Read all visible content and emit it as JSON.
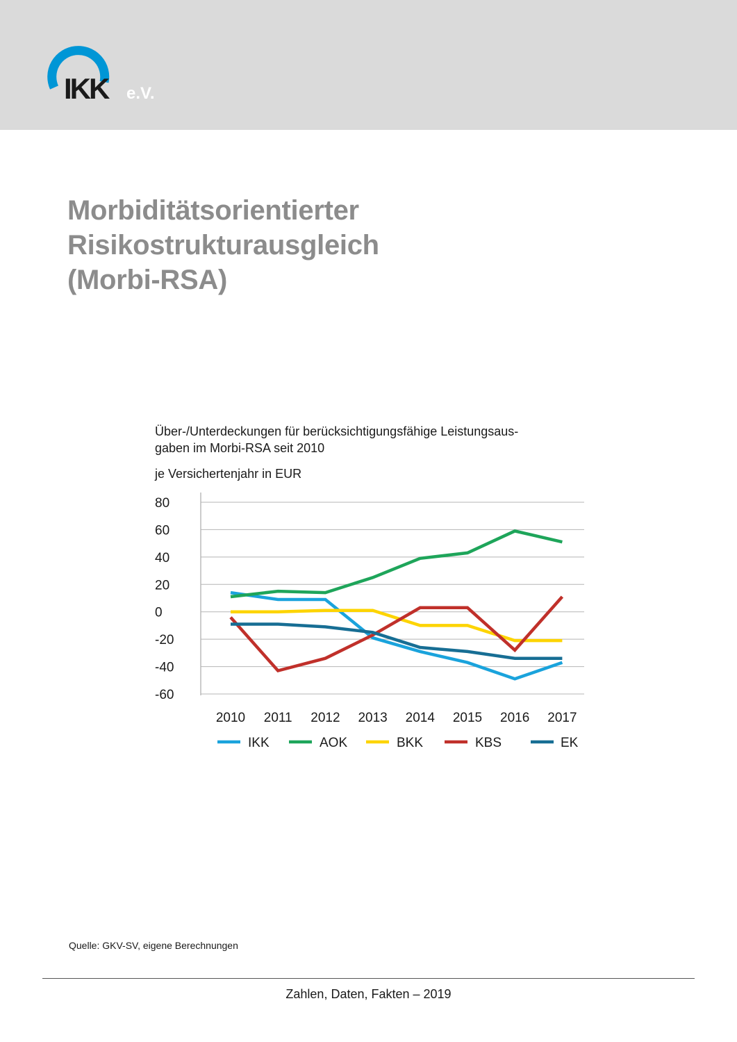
{
  "header": {
    "logo_text": "IKK",
    "logo_suffix": "e.V.",
    "colors": {
      "band": "#dadada",
      "logo_ring": "#0096d6",
      "logo_text": "#1a1a1a",
      "logo_suffix": "#ffffff"
    }
  },
  "page": {
    "title_lines": [
      "Morbiditätsorientierter",
      "Risikostrukturausgleich",
      "(Morbi-RSA)"
    ],
    "source": "Quelle: GKV-SV, eigene Berechnungen",
    "footer": "Zahlen, Daten, Fakten – 2019"
  },
  "chart_data": {
    "type": "line",
    "title_lines": [
      "Über-/Unterdeckungen für berücksichtigungsfähige Leistungsaus-",
      "gaben im Morbi-RSA seit 2010"
    ],
    "subtitle": "je Versichertenjahr in EUR",
    "x": [
      "2010",
      "2011",
      "2012",
      "2013",
      "2014",
      "2015",
      "2016",
      "2017"
    ],
    "ylim": [
      -60,
      80
    ],
    "yticks": [
      "80",
      "60",
      "40",
      "20",
      "0",
      "-20",
      "-40",
      "-60"
    ],
    "grid": true,
    "legend_position": "bottom",
    "series": [
      {
        "name": "IKK",
        "color": "#1aa3dc",
        "values": [
          14,
          9,
          9,
          -19,
          -29,
          -37,
          -49,
          -37
        ]
      },
      {
        "name": "AOK",
        "color": "#1ea55a",
        "values": [
          11,
          15,
          14,
          25,
          39,
          43,
          59,
          51
        ]
      },
      {
        "name": "BKK",
        "color": "#fdd400",
        "values": [
          0,
          0,
          1,
          1,
          -10,
          -10,
          -21,
          -21
        ]
      },
      {
        "name": "KBS",
        "color": "#c0302a",
        "values": [
          -4,
          -43,
          -34,
          -17,
          3,
          3,
          -28,
          11
        ]
      },
      {
        "name": "EK",
        "color": "#176e94",
        "values": [
          -9,
          -9,
          -11,
          -15,
          -26,
          -29,
          -34,
          -34
        ]
      }
    ]
  }
}
